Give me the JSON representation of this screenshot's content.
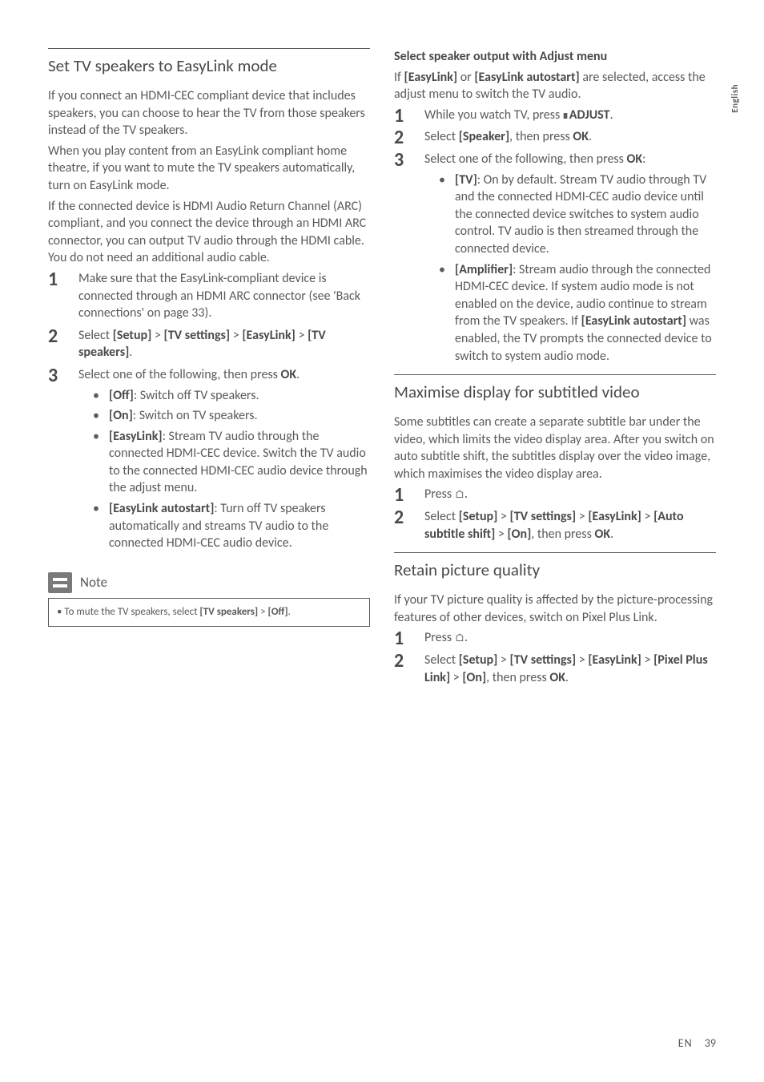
{
  "sideTab": "English",
  "footer": {
    "lang": "EN",
    "page": "39"
  },
  "left": {
    "s1": {
      "title": "Set TV speakers to EasyLink mode",
      "p1": "If you connect an HDMI-CEC compliant device that includes speakers, you can choose to hear the TV from those speakers instead of the TV speakers.",
      "p2": "When you play content from an EasyLink compliant home theatre, if you want to mute the TV speakers automatically, turn on EasyLink mode.",
      "p3": "If the connected device is HDMI Audio Return Channel (ARC) compliant, and you connect the device through an HDMI ARC connector, you can output TV audio through the HDMI cable. You do not need an additional audio cable.",
      "step1": "Make sure that the EasyLink-compliant device is connected through an HDMI ARC connector (see 'Back connections' on page 33).",
      "step2_pre": "Select ",
      "step2_b1": "[Setup]",
      "step2_mid1": " > ",
      "step2_b2": "[TV settings]",
      "step2_mid2": " > ",
      "step2_b3": "[EasyLink]",
      "step2_mid3": " > ",
      "step2_b4": "[TV speakers]",
      "step2_post": ".",
      "step3_pre": "Select one of the following, then press ",
      "step3_b": "OK",
      "step3_post": ".",
      "b1_b": "[Off]",
      "b1_t": ": Switch off TV speakers.",
      "b2_b": "[On]",
      "b2_t": ": Switch on TV speakers.",
      "b3_b": "[EasyLink]",
      "b3_t": ": Stream TV audio through the connected HDMI-CEC device. Switch the TV audio to the connected HDMI-CEC audio device through the adjust menu.",
      "b4_b": "[EasyLink autostart]",
      "b4_t": ": Turn off TV speakers automatically and streams TV audio to the connected HDMI-CEC audio device."
    },
    "note": {
      "label": "Note",
      "text_pre": "• To mute the TV speakers, select ",
      "text_b1": "[TV speakers]",
      "text_mid": " > ",
      "text_b2": "[Off]",
      "text_post": "."
    }
  },
  "right": {
    "s1": {
      "heading": "Select speaker output with Adjust menu",
      "p_pre": "If ",
      "p_b1": "[EasyLink]",
      "p_mid1": " or ",
      "p_b2": "[EasyLink autostart]",
      "p_post": " are selected, access the adjust menu to switch the TV audio.",
      "step1_pre": "While you watch TV, press ",
      "step1_b": " ADJUST",
      "step1_post": ".",
      "step2_pre": "Select ",
      "step2_b1": "[Speaker]",
      "step2_mid": ", then press ",
      "step2_b2": "OK",
      "step2_post": ".",
      "step3_pre": "Select one of the following, then press ",
      "step3_b": "OK",
      "step3_post": ":",
      "b1_b": "[TV]",
      "b1_t": ": On by default. Stream TV audio through TV and the connected HDMI-CEC audio device until the connected device switches to system audio control. TV audio is then streamed through the connected device.",
      "b2_b": "[Amplifier]",
      "b2_t1": ": Stream audio through the connected HDMI-CEC device. If system audio mode is not enabled on the device, audio continue to stream from the TV speakers. If ",
      "b2_b2": "[EasyLink autostart]",
      "b2_t2": " was enabled, the TV prompts the connected device to switch to system audio mode."
    },
    "s2": {
      "title": "Maximise display for subtitled video",
      "p": "Some subtitles can create a separate subtitle bar under the video, which limits the video display area. After you switch on auto subtitle shift, the subtitles display over the video image, which maximises the video display area.",
      "step1_pre": "Press ",
      "step1_post": ".",
      "step2_pre": "Select ",
      "step2_b1": "[Setup]",
      "step2_m1": " > ",
      "step2_b2": "[TV settings]",
      "step2_m2": " > ",
      "step2_b3": "[EasyLink]",
      "step2_m3": " > ",
      "step2_b4": "[Auto subtitle shift]",
      "step2_m4": " > ",
      "step2_b5": "[On]",
      "step2_m5": ", then press ",
      "step2_b6": "OK",
      "step2_post": "."
    },
    "s3": {
      "title": "Retain picture quality",
      "p": "If your TV picture quality is affected by the picture-processing features of other devices, switch on Pixel Plus Link.",
      "step1_pre": "Press ",
      "step1_post": ".",
      "step2_pre": "Select ",
      "step2_b1": "[Setup]",
      "step2_m1": " > ",
      "step2_b2": "[TV settings]",
      "step2_m2": " > ",
      "step2_b3": "[EasyLink]",
      "step2_m3": " > ",
      "step2_b4": "[Pixel Plus Link]",
      "step2_m4": " > ",
      "step2_b5": "[On]",
      "step2_m5": ", then press ",
      "step2_b6": "OK",
      "step2_post": "."
    }
  }
}
